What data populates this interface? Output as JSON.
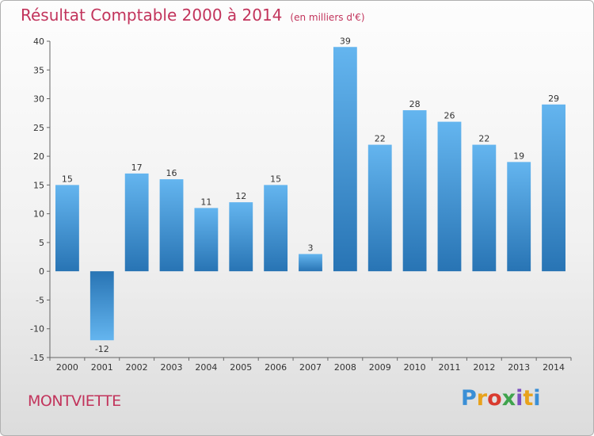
{
  "header": {
    "title": "Résultat Comptable 2000 à 2014",
    "subtitle": "(en milliers d'€)"
  },
  "footer": {
    "town": "MONTVIETTE",
    "logo_letters": [
      "P",
      "r",
      "o",
      "x",
      "i",
      "t",
      "i"
    ],
    "logo_colors": [
      "#3a8fd6",
      "#e8a21c",
      "#d93b2f",
      "#3fa34d",
      "#7b4fbf",
      "#e8a21c",
      "#3a8fd6"
    ]
  },
  "chart_data": {
    "type": "bar",
    "title": "Résultat Comptable 2000 à 2014",
    "subtitle": "(en milliers d'€)",
    "xlabel": "",
    "ylabel": "",
    "categories": [
      "2000",
      "2001",
      "2002",
      "2003",
      "2004",
      "2005",
      "2006",
      "2007",
      "2008",
      "2009",
      "2010",
      "2011",
      "2012",
      "2013",
      "2014"
    ],
    "values": [
      15,
      -12,
      17,
      16,
      11,
      12,
      15,
      3,
      39,
      22,
      28,
      26,
      22,
      19,
      29
    ],
    "ylim": [
      -15,
      40
    ],
    "yticks": [
      -15,
      -10,
      -5,
      0,
      5,
      10,
      15,
      20,
      25,
      30,
      35,
      40
    ],
    "grid": false,
    "colors": {
      "bar_light": "#5eb0ec",
      "bar_dark": "#2a78b8",
      "axis": "#666666"
    }
  }
}
